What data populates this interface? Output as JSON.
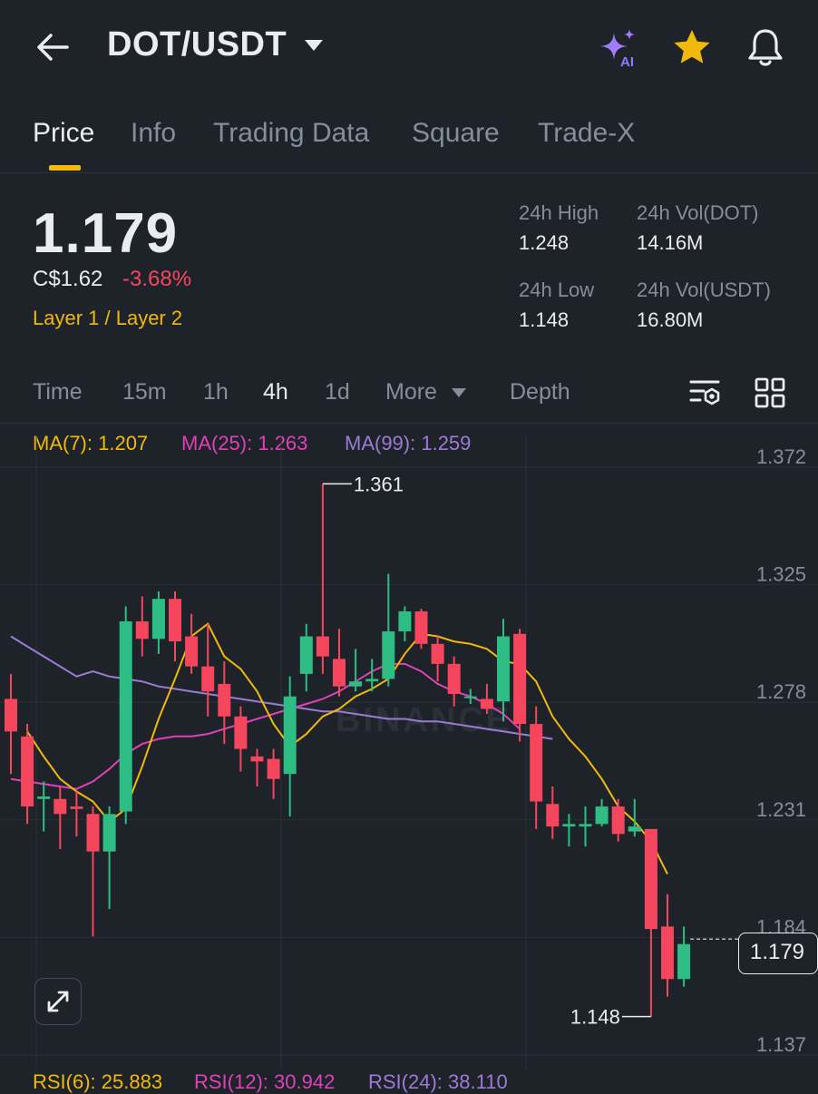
{
  "header": {
    "pair": "DOT/USDT",
    "icons": [
      "back-arrow-icon",
      "caret-down-icon",
      "ai-sparkle-icon",
      "star-icon",
      "bell-icon"
    ],
    "ai_badge": "AI"
  },
  "tabs": [
    {
      "label": "Price",
      "active": true
    },
    {
      "label": "Info",
      "active": false
    },
    {
      "label": "Trading Data",
      "active": false
    },
    {
      "label": "Square",
      "active": false
    },
    {
      "label": "Trade-X",
      "active": false
    }
  ],
  "ticker": {
    "price": "1.179",
    "fiat": "C$1.62",
    "change": "-3.68%",
    "category": "Layer 1 / Layer 2",
    "high_label": "24h High",
    "high": "1.248",
    "low_label": "24h Low",
    "low": "1.148",
    "vol_base_label": "24h Vol(DOT)",
    "vol_base": "14.16M",
    "vol_quote_label": "24h Vol(USDT)",
    "vol_quote": "16.80M"
  },
  "timeframes": {
    "items": [
      "Time",
      "15m",
      "1h",
      "4h",
      "1d",
      "More",
      "Depth"
    ],
    "active": "4h"
  },
  "indicators": {
    "ma7": "MA(7): 1.207",
    "ma25": "MA(25): 1.263",
    "ma99": "MA(99): 1.259",
    "rsi6": "RSI(6): 25.883",
    "rsi12": "RSI(12): 30.942",
    "rsi24": "RSI(24): 38.110"
  },
  "colors": {
    "up": "#2ebd85",
    "down": "#f6465d",
    "ma7": "#f0b90b",
    "ma25": "#e040b8",
    "ma99": "#9c7bd6",
    "accent": "#f0b90b"
  },
  "chart_data": {
    "type": "candlestick",
    "watermark": "BINANCE",
    "y_ticks": [
      "1.372",
      "1.325",
      "1.278",
      "1.231",
      "1.184",
      "1.137"
    ],
    "ylim": [
      1.137,
      1.372
    ],
    "current_price": "1.179",
    "high_annotation": "1.361",
    "low_annotation": "1.148",
    "candles": [
      {
        "o": 1.275,
        "h": 1.285,
        "l": 1.245,
        "c": 1.262
      },
      {
        "o": 1.26,
        "h": 1.265,
        "l": 1.225,
        "c": 1.232
      },
      {
        "o": 1.235,
        "h": 1.242,
        "l": 1.222,
        "c": 1.236
      },
      {
        "o": 1.235,
        "h": 1.24,
        "l": 1.215,
        "c": 1.229
      },
      {
        "o": 1.232,
        "h": 1.238,
        "l": 1.22,
        "c": 1.231
      },
      {
        "o": 1.229,
        "h": 1.232,
        "l": 1.18,
        "c": 1.214
      },
      {
        "o": 1.214,
        "h": 1.232,
        "l": 1.191,
        "c": 1.229
      },
      {
        "o": 1.23,
        "h": 1.312,
        "l": 1.225,
        "c": 1.306
      },
      {
        "o": 1.306,
        "h": 1.316,
        "l": 1.292,
        "c": 1.299
      },
      {
        "o": 1.299,
        "h": 1.318,
        "l": 1.293,
        "c": 1.315
      },
      {
        "o": 1.315,
        "h": 1.318,
        "l": 1.29,
        "c": 1.298
      },
      {
        "o": 1.3,
        "h": 1.309,
        "l": 1.285,
        "c": 1.288
      },
      {
        "o": 1.288,
        "h": 1.305,
        "l": 1.268,
        "c": 1.278
      },
      {
        "o": 1.281,
        "h": 1.29,
        "l": 1.257,
        "c": 1.268
      },
      {
        "o": 1.268,
        "h": 1.272,
        "l": 1.246,
        "c": 1.255
      },
      {
        "o": 1.252,
        "h": 1.255,
        "l": 1.24,
        "c": 1.25
      },
      {
        "o": 1.251,
        "h": 1.255,
        "l": 1.235,
        "c": 1.243
      },
      {
        "o": 1.245,
        "h": 1.284,
        "l": 1.228,
        "c": 1.276
      },
      {
        "o": 1.285,
        "h": 1.305,
        "l": 1.278,
        "c": 1.3
      },
      {
        "o": 1.3,
        "h": 1.361,
        "l": 1.285,
        "c": 1.292
      },
      {
        "o": 1.291,
        "h": 1.303,
        "l": 1.276,
        "c": 1.28
      },
      {
        "o": 1.28,
        "h": 1.295,
        "l": 1.278,
        "c": 1.282
      },
      {
        "o": 1.282,
        "h": 1.291,
        "l": 1.278,
        "c": 1.283
      },
      {
        "o": 1.283,
        "h": 1.325,
        "l": 1.28,
        "c": 1.302
      },
      {
        "o": 1.302,
        "h": 1.312,
        "l": 1.298,
        "c": 1.31
      },
      {
        "o": 1.31,
        "h": 1.311,
        "l": 1.295,
        "c": 1.297
      },
      {
        "o": 1.297,
        "h": 1.3,
        "l": 1.282,
        "c": 1.289
      },
      {
        "o": 1.289,
        "h": 1.292,
        "l": 1.272,
        "c": 1.277
      },
      {
        "o": 1.276,
        "h": 1.279,
        "l": 1.273,
        "c": 1.276
      },
      {
        "o": 1.275,
        "h": 1.281,
        "l": 1.269,
        "c": 1.271
      },
      {
        "o": 1.274,
        "h": 1.307,
        "l": 1.266,
        "c": 1.3
      },
      {
        "o": 1.301,
        "h": 1.303,
        "l": 1.258,
        "c": 1.265
      },
      {
        "o": 1.265,
        "h": 1.272,
        "l": 1.223,
        "c": 1.234
      },
      {
        "o": 1.233,
        "h": 1.24,
        "l": 1.219,
        "c": 1.224
      },
      {
        "o": 1.224,
        "h": 1.229,
        "l": 1.216,
        "c": 1.225
      },
      {
        "o": 1.224,
        "h": 1.232,
        "l": 1.216,
        "c": 1.225
      },
      {
        "o": 1.225,
        "h": 1.235,
        "l": 1.224,
        "c": 1.232
      },
      {
        "o": 1.232,
        "h": 1.235,
        "l": 1.218,
        "c": 1.221
      },
      {
        "o": 1.222,
        "h": 1.235,
        "l": 1.22,
        "c": 1.224
      },
      {
        "o": 1.223,
        "h": 1.223,
        "l": 1.148,
        "c": 1.183
      },
      {
        "o": 1.184,
        "h": 1.197,
        "l": 1.156,
        "c": 1.163
      },
      {
        "o": 1.163,
        "h": 1.184,
        "l": 1.16,
        "c": 1.177
      }
    ],
    "ma7": [
      1.262,
      1.252,
      1.243,
      1.238,
      1.234,
      1.226,
      1.231,
      1.248,
      1.267,
      1.283,
      1.3,
      1.305,
      1.292,
      1.287,
      1.278,
      1.265,
      1.256,
      1.261,
      1.268,
      1.271,
      1.276,
      1.279,
      1.283,
      1.293,
      1.301,
      1.3,
      1.298,
      1.297,
      1.295,
      1.29,
      1.289,
      1.282,
      1.268,
      1.259,
      1.252,
      1.243,
      1.232,
      1.226,
      1.218,
      1.205
    ],
    "ma25": [
      1.243,
      1.242,
      1.241,
      1.24,
      1.239,
      1.242,
      1.247,
      1.253,
      1.257,
      1.259,
      1.26,
      1.26,
      1.261,
      1.263,
      1.265,
      1.267,
      1.269,
      1.271,
      1.273,
      1.275,
      1.278,
      1.282,
      1.286,
      1.289,
      1.289,
      1.286,
      1.281,
      1.278,
      1.276,
      1.273,
      1.269,
      1.263
    ],
    "ma99": [
      1.3,
      1.296,
      1.292,
      1.288,
      1.284,
      1.286,
      1.284,
      1.283,
      1.282,
      1.28,
      1.279,
      1.278,
      1.277,
      1.276,
      1.275,
      1.274,
      1.273,
      1.272,
      1.271,
      1.27,
      1.27,
      1.269,
      1.268,
      1.267,
      1.267,
      1.266,
      1.266,
      1.265,
      1.264,
      1.263,
      1.262,
      1.261,
      1.26,
      1.259
    ]
  }
}
